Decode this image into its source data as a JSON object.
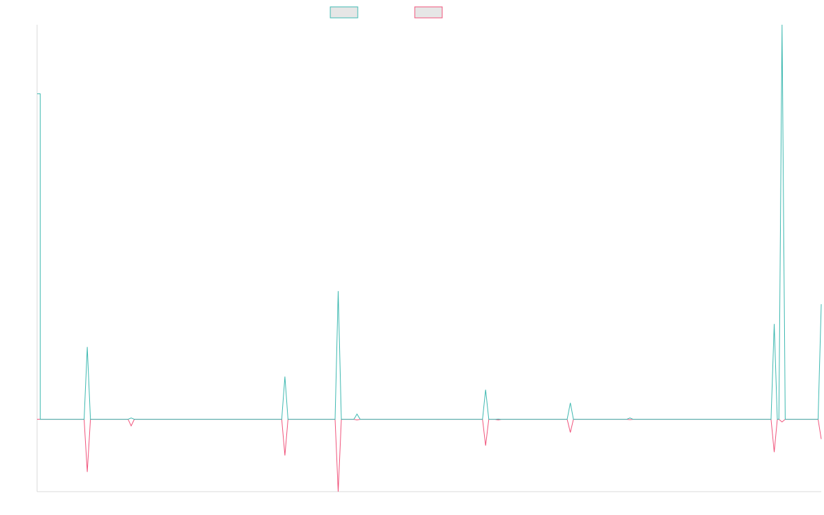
{
  "chart_data": {
    "type": "line",
    "title": "",
    "xlabel": "",
    "ylabel": "",
    "grid": false,
    "legend": "top-center",
    "xlim": [
      0,
      1000
    ],
    "ylim": [
      -22,
      120
    ],
    "baseline": 0,
    "series": [
      {
        "color": "#3cb8b0",
        "legend_fill": "#e6e6e6",
        "points": [
          [
            0,
            99
          ],
          [
            4,
            99
          ],
          [
            4,
            0
          ],
          [
            60,
            0
          ],
          [
            64,
            22
          ],
          [
            68,
            0
          ],
          [
            116,
            0
          ],
          [
            120,
            0.4
          ],
          [
            124,
            0
          ],
          [
            312,
            0
          ],
          [
            316,
            13
          ],
          [
            320,
            0
          ],
          [
            380,
            0
          ],
          [
            384,
            39
          ],
          [
            388,
            0
          ],
          [
            404,
            0
          ],
          [
            408,
            1.6
          ],
          [
            412,
            0
          ],
          [
            568,
            0
          ],
          [
            572,
            9
          ],
          [
            576,
            0
          ],
          [
            584,
            0
          ],
          [
            588,
            0.1
          ],
          [
            592,
            0
          ],
          [
            676,
            0
          ],
          [
            680,
            5
          ],
          [
            684,
            0
          ],
          [
            752,
            0
          ],
          [
            756,
            0.4
          ],
          [
            760,
            0
          ],
          [
            936,
            0
          ],
          [
            940,
            29
          ],
          [
            944,
            0
          ],
          [
            946,
            0
          ],
          [
            950,
            120
          ],
          [
            954,
            0
          ],
          [
            996,
            0
          ],
          [
            1000,
            35
          ]
        ]
      },
      {
        "color": "#f0527a",
        "legend_fill": "#e6e6e6",
        "points": [
          [
            0,
            0
          ],
          [
            60,
            0
          ],
          [
            64,
            -16
          ],
          [
            68,
            0
          ],
          [
            116,
            0
          ],
          [
            120,
            -2
          ],
          [
            124,
            0
          ],
          [
            312,
            0
          ],
          [
            316,
            -11
          ],
          [
            320,
            0
          ],
          [
            380,
            0
          ],
          [
            384,
            -22
          ],
          [
            388,
            0
          ],
          [
            404,
            0
          ],
          [
            408,
            -0.2
          ],
          [
            412,
            0
          ],
          [
            568,
            0
          ],
          [
            572,
            -8
          ],
          [
            576,
            0
          ],
          [
            584,
            0
          ],
          [
            588,
            -0.2
          ],
          [
            592,
            0
          ],
          [
            676,
            0
          ],
          [
            680,
            -4
          ],
          [
            684,
            0
          ],
          [
            752,
            0
          ],
          [
            756,
            -0.1
          ],
          [
            760,
            0
          ],
          [
            936,
            0
          ],
          [
            940,
            -10
          ],
          [
            944,
            0
          ],
          [
            946,
            0
          ],
          [
            950,
            -0.8
          ],
          [
            954,
            0
          ],
          [
            996,
            0
          ],
          [
            1000,
            -6
          ]
        ]
      }
    ]
  }
}
